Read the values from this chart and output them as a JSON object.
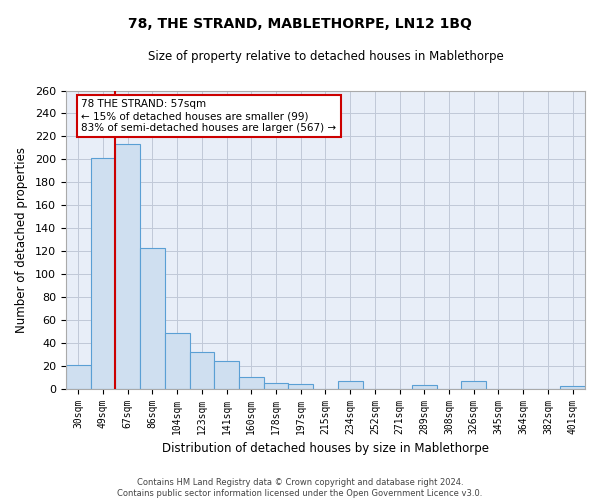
{
  "title": "78, THE STRAND, MABLETHORPE, LN12 1BQ",
  "subtitle": "Size of property relative to detached houses in Mablethorpe",
  "xlabel": "Distribution of detached houses by size in Mablethorpe",
  "ylabel": "Number of detached properties",
  "bar_labels": [
    "30sqm",
    "49sqm",
    "67sqm",
    "86sqm",
    "104sqm",
    "123sqm",
    "141sqm",
    "160sqm",
    "178sqm",
    "197sqm",
    "215sqm",
    "234sqm",
    "252sqm",
    "271sqm",
    "289sqm",
    "308sqm",
    "326sqm",
    "345sqm",
    "364sqm",
    "382sqm",
    "401sqm"
  ],
  "bar_values": [
    21,
    201,
    213,
    123,
    49,
    32,
    24,
    10,
    5,
    4,
    0,
    7,
    0,
    0,
    3,
    0,
    7,
    0,
    0,
    0,
    2
  ],
  "bar_color": "#cfdff0",
  "bar_edge_color": "#5a9fd4",
  "ref_line_x": 1.5,
  "ref_line_color": "#cc0000",
  "ylim": [
    0,
    260
  ],
  "yticks": [
    0,
    20,
    40,
    60,
    80,
    100,
    120,
    140,
    160,
    180,
    200,
    220,
    240,
    260
  ],
  "annotation_title": "78 THE STRAND: 57sqm",
  "annotation_line1": "← 15% of detached houses are smaller (99)",
  "annotation_line2": "83% of semi-detached houses are larger (567) →",
  "annotation_box_color": "#ffffff",
  "annotation_box_edge": "#cc0000",
  "footer_line1": "Contains HM Land Registry data © Crown copyright and database right 2024.",
  "footer_line2": "Contains public sector information licensed under the Open Government Licence v3.0.",
  "plot_bg_color": "#e8eef8",
  "fig_bg_color": "#ffffff",
  "grid_color": "#c0c8d8"
}
